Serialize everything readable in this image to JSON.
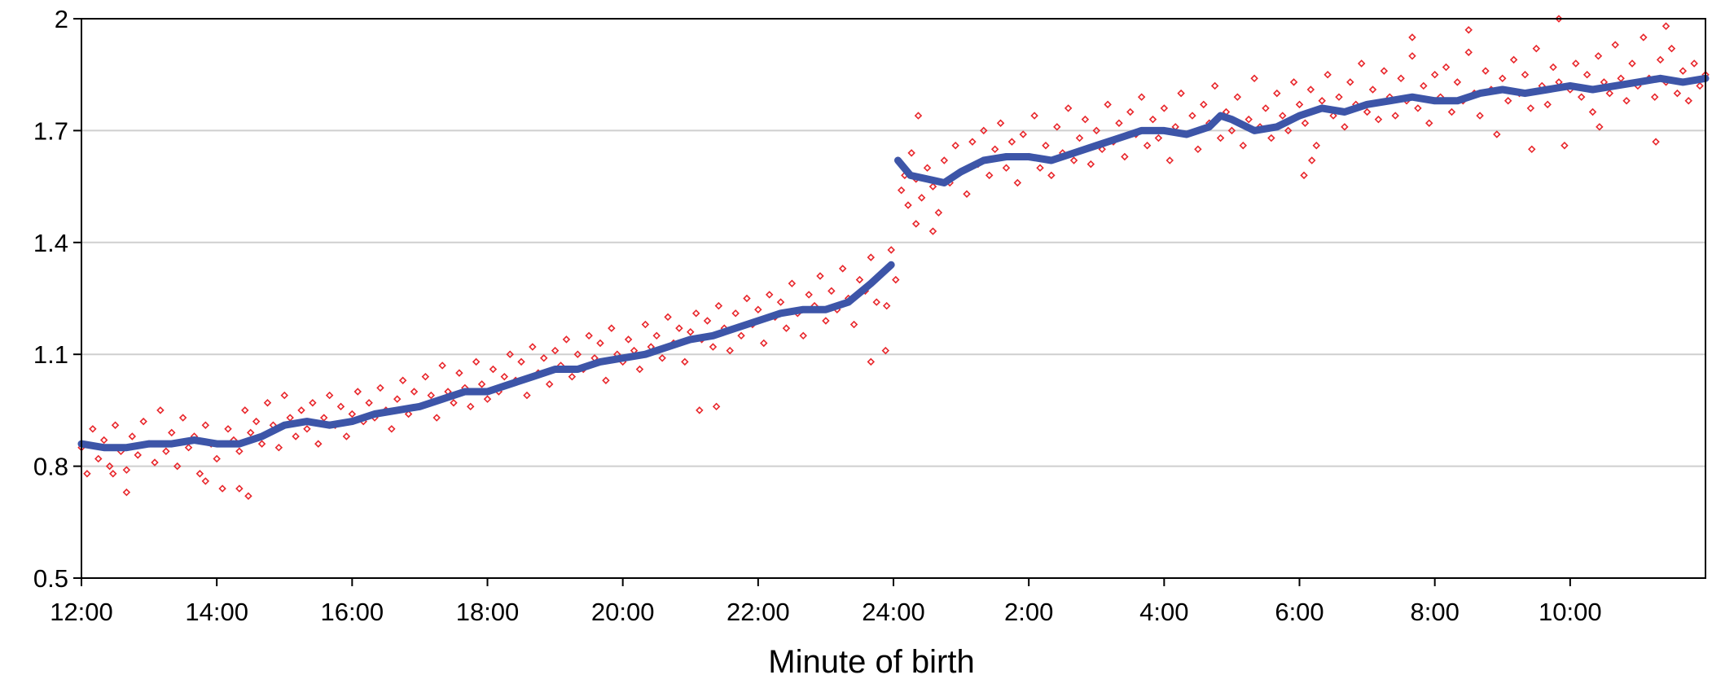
{
  "chart_data": {
    "type": "scatter",
    "title": "",
    "xlabel": "Minute of birth",
    "ylabel": "",
    "xlim": [
      0,
      1440
    ],
    "ylim": [
      0.5,
      2.0
    ],
    "x_tick_labels": [
      {
        "minute": 0,
        "label": "12:00"
      },
      {
        "minute": 120,
        "label": "14:00"
      },
      {
        "minute": 240,
        "label": "16:00"
      },
      {
        "minute": 360,
        "label": "18:00"
      },
      {
        "minute": 480,
        "label": "20:00"
      },
      {
        "minute": 600,
        "label": "22:00"
      },
      {
        "minute": 720,
        "label": "24:00"
      },
      {
        "minute": 840,
        "label": "2:00"
      },
      {
        "minute": 960,
        "label": "4:00"
      },
      {
        "minute": 1080,
        "label": "6:00"
      },
      {
        "minute": 1200,
        "label": "8:00"
      },
      {
        "minute": 1320,
        "label": "10:00"
      }
    ],
    "y_ticks": [
      0.5,
      0.8,
      1.1,
      1.4,
      1.7,
      2.0
    ],
    "y_tick_labels": [
      "0.5",
      "0.8",
      "1.1",
      "1.4",
      "1.7",
      "2"
    ],
    "grid": true,
    "legend": "none",
    "scatter_style": {
      "marker": "open-diamond",
      "color": "#e8262b"
    },
    "trend_style": {
      "color": "#3d55a8"
    },
    "scatter": [
      [
        0,
        0.85
      ],
      [
        5,
        0.78
      ],
      [
        10,
        0.9
      ],
      [
        15,
        0.82
      ],
      [
        20,
        0.87
      ],
      [
        25,
        0.8
      ],
      [
        30,
        0.91
      ],
      [
        35,
        0.84
      ],
      [
        40,
        0.79
      ],
      [
        45,
        0.88
      ],
      [
        50,
        0.83
      ],
      [
        55,
        0.92
      ],
      [
        60,
        0.86
      ],
      [
        65,
        0.81
      ],
      [
        70,
        0.95
      ],
      [
        75,
        0.84
      ],
      [
        80,
        0.89
      ],
      [
        85,
        0.8
      ],
      [
        90,
        0.93
      ],
      [
        95,
        0.85
      ],
      [
        100,
        0.88
      ],
      [
        105,
        0.78
      ],
      [
        110,
        0.91
      ],
      [
        115,
        0.86
      ],
      [
        120,
        0.82
      ],
      [
        125,
        0.74
      ],
      [
        130,
        0.9
      ],
      [
        135,
        0.87
      ],
      [
        140,
        0.84
      ],
      [
        145,
        0.95
      ],
      [
        150,
        0.89
      ],
      [
        155,
        0.92
      ],
      [
        160,
        0.86
      ],
      [
        165,
        0.97
      ],
      [
        170,
        0.91
      ],
      [
        175,
        0.85
      ],
      [
        180,
        0.99
      ],
      [
        185,
        0.93
      ],
      [
        190,
        0.88
      ],
      [
        195,
        0.95
      ],
      [
        200,
        0.9
      ],
      [
        205,
        0.97
      ],
      [
        210,
        0.86
      ],
      [
        215,
        0.93
      ],
      [
        220,
        0.99
      ],
      [
        225,
        0.91
      ],
      [
        230,
        0.96
      ],
      [
        235,
        0.88
      ],
      [
        240,
        0.94
      ],
      [
        245,
        1.0
      ],
      [
        250,
        0.92
      ],
      [
        255,
        0.97
      ],
      [
        260,
        0.93
      ],
      [
        265,
        1.01
      ],
      [
        270,
        0.95
      ],
      [
        275,
        0.9
      ],
      [
        280,
        0.98
      ],
      [
        285,
        1.03
      ],
      [
        290,
        0.94
      ],
      [
        295,
        1.0
      ],
      [
        300,
        0.96
      ],
      [
        305,
        1.04
      ],
      [
        310,
        0.99
      ],
      [
        315,
        0.93
      ],
      [
        320,
        1.07
      ],
      [
        325,
        1.0
      ],
      [
        330,
        0.97
      ],
      [
        335,
        1.05
      ],
      [
        340,
        1.01
      ],
      [
        345,
        0.96
      ],
      [
        350,
        1.08
      ],
      [
        355,
        1.02
      ],
      [
        360,
        0.98
      ],
      [
        365,
        1.06
      ],
      [
        370,
        1.0
      ],
      [
        375,
        1.04
      ],
      [
        380,
        1.1
      ],
      [
        385,
        1.03
      ],
      [
        390,
        1.08
      ],
      [
        395,
        0.99
      ],
      [
        400,
        1.12
      ],
      [
        405,
        1.05
      ],
      [
        410,
        1.09
      ],
      [
        415,
        1.02
      ],
      [
        420,
        1.11
      ],
      [
        425,
        1.07
      ],
      [
        430,
        1.14
      ],
      [
        435,
        1.04
      ],
      [
        440,
        1.1
      ],
      [
        445,
        1.06
      ],
      [
        450,
        1.15
      ],
      [
        455,
        1.09
      ],
      [
        460,
        1.13
      ],
      [
        465,
        1.03
      ],
      [
        470,
        1.17
      ],
      [
        475,
        1.1
      ],
      [
        480,
        1.08
      ],
      [
        485,
        1.14
      ],
      [
        490,
        1.11
      ],
      [
        495,
        1.06
      ],
      [
        500,
        1.18
      ],
      [
        505,
        1.12
      ],
      [
        510,
        1.15
      ],
      [
        515,
        1.09
      ],
      [
        520,
        1.2
      ],
      [
        525,
        1.13
      ],
      [
        530,
        1.17
      ],
      [
        535,
        1.08
      ],
      [
        540,
        1.16
      ],
      [
        545,
        1.21
      ],
      [
        550,
        1.14
      ],
      [
        555,
        1.19
      ],
      [
        560,
        1.12
      ],
      [
        565,
        1.23
      ],
      [
        570,
        1.17
      ],
      [
        575,
        1.11
      ],
      [
        580,
        1.21
      ],
      [
        585,
        1.15
      ],
      [
        590,
        1.25
      ],
      [
        595,
        1.18
      ],
      [
        600,
        1.22
      ],
      [
        605,
        1.13
      ],
      [
        610,
        1.26
      ],
      [
        615,
        1.2
      ],
      [
        620,
        1.24
      ],
      [
        625,
        1.17
      ],
      [
        630,
        1.29
      ],
      [
        635,
        1.21
      ],
      [
        640,
        1.15
      ],
      [
        645,
        1.26
      ],
      [
        650,
        1.23
      ],
      [
        655,
        1.31
      ],
      [
        660,
        1.19
      ],
      [
        665,
        1.27
      ],
      [
        670,
        1.22
      ],
      [
        675,
        1.33
      ],
      [
        680,
        1.25
      ],
      [
        685,
        1.18
      ],
      [
        690,
        1.3
      ],
      [
        695,
        1.27
      ],
      [
        700,
        1.36
      ],
      [
        705,
        1.24
      ],
      [
        710,
        1.32
      ],
      [
        714,
        1.23
      ],
      [
        718,
        1.38
      ],
      [
        722,
        1.3
      ],
      [
        724,
        1.62
      ],
      [
        727,
        1.54
      ],
      [
        730,
        1.58
      ],
      [
        733,
        1.5
      ],
      [
        736,
        1.64
      ],
      [
        740,
        1.57
      ],
      [
        745,
        1.52
      ],
      [
        750,
        1.6
      ],
      [
        755,
        1.55
      ],
      [
        760,
        1.48
      ],
      [
        765,
        1.62
      ],
      [
        770,
        1.56
      ],
      [
        775,
        1.66
      ],
      [
        780,
        1.59
      ],
      [
        785,
        1.53
      ],
      [
        790,
        1.67
      ],
      [
        795,
        1.61
      ],
      [
        800,
        1.7
      ],
      [
        805,
        1.58
      ],
      [
        810,
        1.65
      ],
      [
        815,
        1.72
      ],
      [
        820,
        1.6
      ],
      [
        825,
        1.67
      ],
      [
        830,
        1.56
      ],
      [
        835,
        1.69
      ],
      [
        840,
        1.63
      ],
      [
        845,
        1.74
      ],
      [
        850,
        1.6
      ],
      [
        855,
        1.66
      ],
      [
        860,
        1.58
      ],
      [
        865,
        1.71
      ],
      [
        870,
        1.64
      ],
      [
        875,
        1.76
      ],
      [
        880,
        1.62
      ],
      [
        885,
        1.68
      ],
      [
        890,
        1.73
      ],
      [
        895,
        1.61
      ],
      [
        900,
        1.7
      ],
      [
        905,
        1.65
      ],
      [
        910,
        1.77
      ],
      [
        915,
        1.67
      ],
      [
        920,
        1.72
      ],
      [
        925,
        1.63
      ],
      [
        930,
        1.75
      ],
      [
        935,
        1.69
      ],
      [
        940,
        1.79
      ],
      [
        945,
        1.66
      ],
      [
        950,
        1.73
      ],
      [
        955,
        1.68
      ],
      [
        960,
        1.76
      ],
      [
        965,
        1.62
      ],
      [
        970,
        1.71
      ],
      [
        975,
        1.8
      ],
      [
        980,
        1.69
      ],
      [
        985,
        1.74
      ],
      [
        990,
        1.65
      ],
      [
        995,
        1.77
      ],
      [
        1000,
        1.72
      ],
      [
        1005,
        1.82
      ],
      [
        1010,
        1.68
      ],
      [
        1015,
        1.75
      ],
      [
        1020,
        1.7
      ],
      [
        1025,
        1.79
      ],
      [
        1030,
        1.66
      ],
      [
        1035,
        1.73
      ],
      [
        1040,
        1.84
      ],
      [
        1045,
        1.71
      ],
      [
        1050,
        1.76
      ],
      [
        1055,
        1.68
      ],
      [
        1060,
        1.8
      ],
      [
        1065,
        1.74
      ],
      [
        1070,
        1.7
      ],
      [
        1075,
        1.83
      ],
      [
        1080,
        1.77
      ],
      [
        1085,
        1.72
      ],
      [
        1090,
        1.81
      ],
      [
        1095,
        1.66
      ],
      [
        1100,
        1.78
      ],
      [
        1105,
        1.85
      ],
      [
        1110,
        1.74
      ],
      [
        1115,
        1.79
      ],
      [
        1120,
        1.71
      ],
      [
        1125,
        1.83
      ],
      [
        1130,
        1.77
      ],
      [
        1135,
        1.88
      ],
      [
        1140,
        1.75
      ],
      [
        1145,
        1.81
      ],
      [
        1150,
        1.73
      ],
      [
        1155,
        1.86
      ],
      [
        1160,
        1.79
      ],
      [
        1165,
        1.74
      ],
      [
        1170,
        1.84
      ],
      [
        1175,
        1.78
      ],
      [
        1180,
        1.9
      ],
      [
        1185,
        1.76
      ],
      [
        1190,
        1.82
      ],
      [
        1195,
        1.72
      ],
      [
        1200,
        1.85
      ],
      [
        1205,
        1.79
      ],
      [
        1210,
        1.87
      ],
      [
        1215,
        1.75
      ],
      [
        1220,
        1.83
      ],
      [
        1225,
        1.78
      ],
      [
        1230,
        1.91
      ],
      [
        1235,
        1.8
      ],
      [
        1240,
        1.74
      ],
      [
        1245,
        1.86
      ],
      [
        1250,
        1.81
      ],
      [
        1255,
        1.69
      ],
      [
        1260,
        1.84
      ],
      [
        1265,
        1.78
      ],
      [
        1270,
        1.89
      ],
      [
        1275,
        1.8
      ],
      [
        1280,
        1.85
      ],
      [
        1285,
        1.76
      ],
      [
        1290,
        1.92
      ],
      [
        1295,
        1.82
      ],
      [
        1300,
        1.77
      ],
      [
        1305,
        1.87
      ],
      [
        1310,
        1.83
      ],
      [
        1315,
        1.66
      ],
      [
        1320,
        1.81
      ],
      [
        1325,
        1.88
      ],
      [
        1330,
        1.79
      ],
      [
        1335,
        1.85
      ],
      [
        1340,
        1.75
      ],
      [
        1345,
        1.9
      ],
      [
        1350,
        1.83
      ],
      [
        1355,
        1.8
      ],
      [
        1360,
        1.93
      ],
      [
        1365,
        1.84
      ],
      [
        1370,
        1.78
      ],
      [
        1375,
        1.88
      ],
      [
        1380,
        1.82
      ],
      [
        1385,
        1.95
      ],
      [
        1390,
        1.84
      ],
      [
        1395,
        1.79
      ],
      [
        1400,
        1.89
      ],
      [
        1405,
        1.83
      ],
      [
        1410,
        1.92
      ],
      [
        1415,
        1.8
      ],
      [
        1420,
        1.86
      ],
      [
        1425,
        1.78
      ],
      [
        1430,
        1.88
      ],
      [
        1435,
        1.82
      ],
      [
        1440,
        1.85
      ],
      [
        1310,
        2.0
      ],
      [
        1230,
        1.97
      ],
      [
        1180,
        1.95
      ],
      [
        1405,
        1.98
      ],
      [
        148,
        0.72
      ],
      [
        140,
        0.74
      ],
      [
        110,
        0.76
      ],
      [
        40,
        0.73
      ],
      [
        28,
        0.78
      ],
      [
        563,
        0.96
      ],
      [
        548,
        0.95
      ],
      [
        1084,
        1.58
      ],
      [
        1091,
        1.62
      ],
      [
        700,
        1.08
      ],
      [
        713,
        1.11
      ],
      [
        742,
        1.74
      ],
      [
        755,
        1.43
      ],
      [
        740,
        1.45
      ],
      [
        1286,
        1.65
      ],
      [
        1396,
        1.67
      ],
      [
        1346,
        1.71
      ]
    ],
    "trend": [
      [
        0,
        0.86
      ],
      [
        20,
        0.85
      ],
      [
        40,
        0.85
      ],
      [
        60,
        0.86
      ],
      [
        80,
        0.86
      ],
      [
        100,
        0.87
      ],
      [
        120,
        0.86
      ],
      [
        140,
        0.86
      ],
      [
        160,
        0.88
      ],
      [
        180,
        0.91
      ],
      [
        200,
        0.92
      ],
      [
        220,
        0.91
      ],
      [
        240,
        0.92
      ],
      [
        260,
        0.94
      ],
      [
        280,
        0.95
      ],
      [
        300,
        0.96
      ],
      [
        320,
        0.98
      ],
      [
        340,
        1.0
      ],
      [
        360,
        1.0
      ],
      [
        380,
        1.02
      ],
      [
        400,
        1.04
      ],
      [
        420,
        1.06
      ],
      [
        440,
        1.06
      ],
      [
        460,
        1.08
      ],
      [
        480,
        1.09
      ],
      [
        500,
        1.1
      ],
      [
        520,
        1.12
      ],
      [
        540,
        1.14
      ],
      [
        560,
        1.15
      ],
      [
        580,
        1.17
      ],
      [
        600,
        1.19
      ],
      [
        620,
        1.21
      ],
      [
        640,
        1.22
      ],
      [
        660,
        1.22
      ],
      [
        680,
        1.24
      ],
      [
        700,
        1.29
      ],
      [
        718,
        1.34
      ],
      [
        724,
        1.62
      ],
      [
        735,
        1.58
      ],
      [
        750,
        1.57
      ],
      [
        765,
        1.56
      ],
      [
        780,
        1.59
      ],
      [
        800,
        1.62
      ],
      [
        820,
        1.63
      ],
      [
        840,
        1.63
      ],
      [
        860,
        1.62
      ],
      [
        880,
        1.64
      ],
      [
        900,
        1.66
      ],
      [
        920,
        1.68
      ],
      [
        940,
        1.7
      ],
      [
        960,
        1.7
      ],
      [
        980,
        1.69
      ],
      [
        1000,
        1.71
      ],
      [
        1010,
        1.74
      ],
      [
        1020,
        1.73
      ],
      [
        1040,
        1.7
      ],
      [
        1060,
        1.71
      ],
      [
        1080,
        1.74
      ],
      [
        1100,
        1.76
      ],
      [
        1120,
        1.75
      ],
      [
        1140,
        1.77
      ],
      [
        1160,
        1.78
      ],
      [
        1180,
        1.79
      ],
      [
        1200,
        1.78
      ],
      [
        1220,
        1.78
      ],
      [
        1240,
        1.8
      ],
      [
        1260,
        1.81
      ],
      [
        1280,
        1.8
      ],
      [
        1300,
        1.81
      ],
      [
        1320,
        1.82
      ],
      [
        1340,
        1.81
      ],
      [
        1360,
        1.82
      ],
      [
        1380,
        1.83
      ],
      [
        1400,
        1.84
      ],
      [
        1420,
        1.83
      ],
      [
        1440,
        1.84
      ]
    ]
  }
}
